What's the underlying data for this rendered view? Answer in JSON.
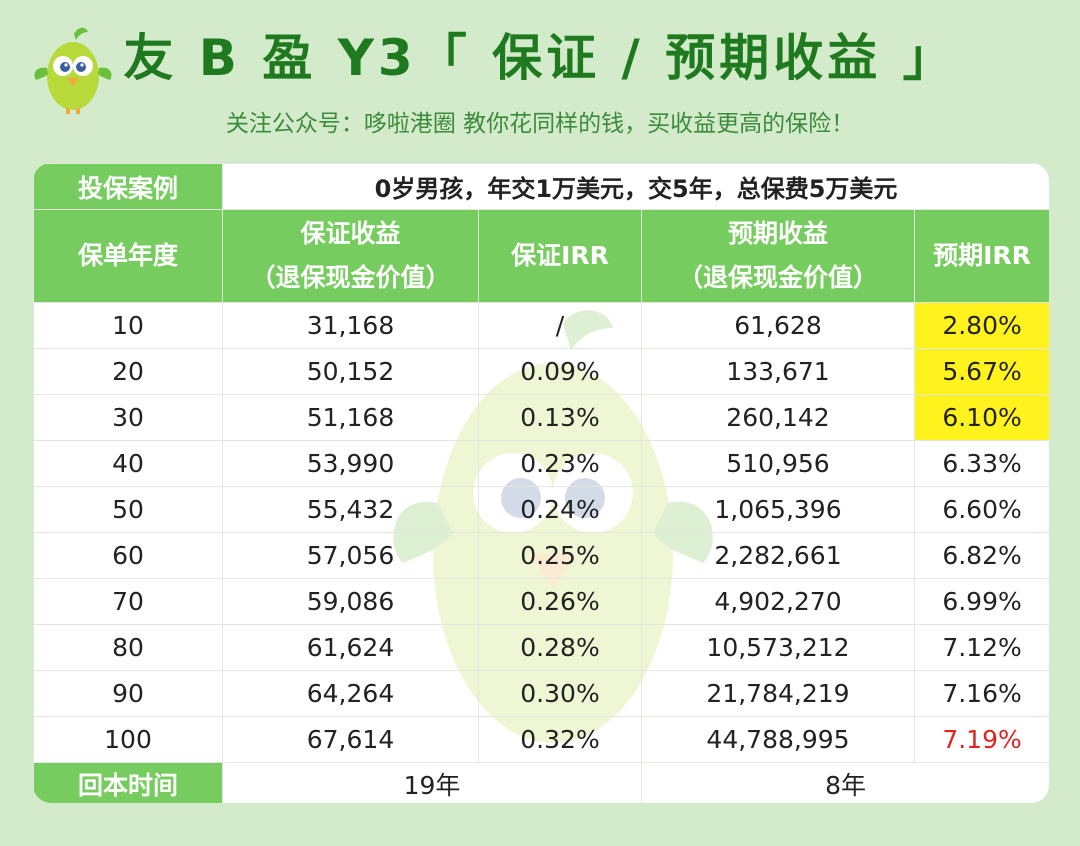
{
  "header": {
    "title": "友 B 盈 Y3「 保证 / 预期收益 」",
    "subtitle": "关注公众号：哆啦港圈    教你花同样的钱，买收益更高的保险！"
  },
  "case": {
    "label": "投保案例",
    "description": "0岁男孩，年交1万美元，交5年，总保费5万美元"
  },
  "columns": {
    "year": "保单年度",
    "guaranteed_line1": "保证收益",
    "guaranteed_line2": "（退保现金价值）",
    "guaranteed_irr": "保证IRR",
    "expected_line1": "预期收益",
    "expected_line2": "（退保现金价值）",
    "expected_irr": "预期IRR"
  },
  "rows": [
    {
      "year": "10",
      "guaranteed": "31,168",
      "g_irr": "/",
      "expected": "61,628",
      "e_irr": "2.80%"
    },
    {
      "year": "20",
      "guaranteed": "50,152",
      "g_irr": "0.09%",
      "expected": "133,671",
      "e_irr": "5.67%"
    },
    {
      "year": "30",
      "guaranteed": "51,168",
      "g_irr": "0.13%",
      "expected": "260,142",
      "e_irr": "6.10%"
    },
    {
      "year": "40",
      "guaranteed": "53,990",
      "g_irr": "0.23%",
      "expected": "510,956",
      "e_irr": "6.33%"
    },
    {
      "year": "50",
      "guaranteed": "55,432",
      "g_irr": "0.24%",
      "expected": "1,065,396",
      "e_irr": "6.60%"
    },
    {
      "year": "60",
      "guaranteed": "57,056",
      "g_irr": "0.25%",
      "expected": "2,282,661",
      "e_irr": "6.82%"
    },
    {
      "year": "70",
      "guaranteed": "59,086",
      "g_irr": "0.26%",
      "expected": "4,902,270",
      "e_irr": "6.99%"
    },
    {
      "year": "80",
      "guaranteed": "61,624",
      "g_irr": "0.28%",
      "expected": "10,573,212",
      "e_irr": "7.12%"
    },
    {
      "year": "90",
      "guaranteed": "64,264",
      "g_irr": "0.30%",
      "expected": "21,784,219",
      "e_irr": "7.16%"
    },
    {
      "year": "100",
      "guaranteed": "67,614",
      "g_irr": "0.32%",
      "expected": "44,788,995",
      "e_irr": "7.19%"
    }
  ],
  "payback": {
    "label": "回本时间",
    "guaranteed": "19年",
    "expected": "8年"
  },
  "colors": {
    "background": "#d3ebcb",
    "header_green": "#77cc5f",
    "title_green": "#1f7a1f",
    "highlight_yellow": "#fff21d",
    "emphasis_red": "#e0231e"
  },
  "icons": {
    "logo": "green-bird-mascot-icon",
    "watermark": "bird-mascot-watermark-icon"
  }
}
